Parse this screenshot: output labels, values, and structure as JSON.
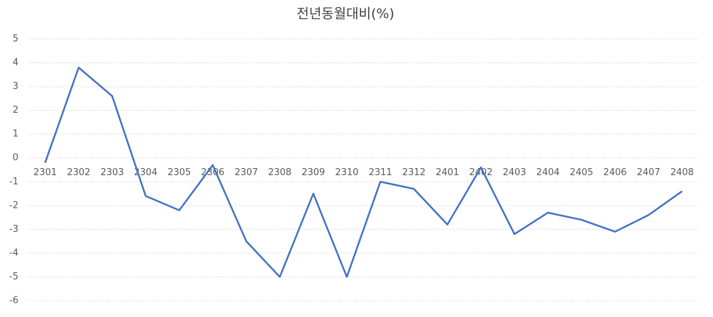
{
  "chart_data": {
    "type": "line",
    "title": "전년동월대비(%)",
    "categories": [
      "2301",
      "2302",
      "2303",
      "2304",
      "2305",
      "2306",
      "2307",
      "2308",
      "2309",
      "2310",
      "2311",
      "2312",
      "2401",
      "2402",
      "2403",
      "2404",
      "2405",
      "2406",
      "2407",
      "2408"
    ],
    "series": [
      {
        "name": "전년동월대비",
        "color": "#4472c4",
        "values": [
          -0.2,
          3.8,
          2.6,
          -1.6,
          -2.2,
          -0.3,
          -3.5,
          -5.0,
          -1.5,
          -5.0,
          -1.0,
          -1.3,
          -2.8,
          -0.4,
          -3.2,
          -2.3,
          -2.6,
          -3.1,
          -2.4,
          -1.4
        ]
      }
    ],
    "ylim": [
      -6,
      5
    ],
    "yticks": [
      -6,
      -5,
      -4,
      -3,
      -2,
      -1,
      0,
      1,
      2,
      3,
      4,
      5
    ],
    "grid": true
  }
}
